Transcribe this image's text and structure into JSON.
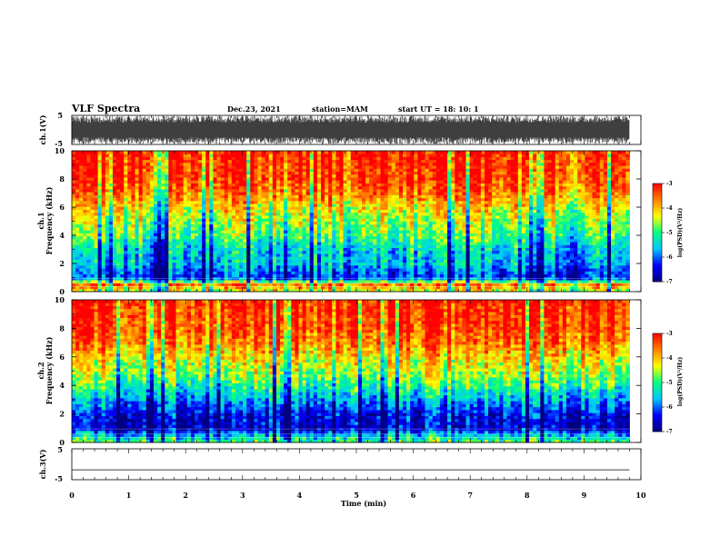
{
  "header": {
    "title": "VLF Spectra",
    "date": "Dec.23, 2021",
    "station": "station=MAM",
    "start": "start  UT  =   18: 10: 1"
  },
  "colors": {
    "axis": "#000000",
    "spectrogram_scale": [
      "#000080",
      "#0000ff",
      "#00c8ff",
      "#00ff80",
      "#ffff00",
      "#ff8000",
      "#ff0000"
    ]
  },
  "chart_data": [
    {
      "type": "line",
      "name": "ch1-waveform",
      "ylabel": "ch.1(V)",
      "x_range": [
        0,
        10
      ],
      "ylim": [
        -5,
        5
      ],
      "y_ticks": [
        "5",
        "-5"
      ],
      "grid": false,
      "description_fill": "dense oscillating waveform filling roughly -4 to 4 V from 0 to 9.8 min"
    },
    {
      "type": "heatmap",
      "name": "ch1-spectrogram",
      "ylabel_line1": "ch.1",
      "ylabel_line2": "Frequency (kHz)",
      "ylim": [
        0,
        10
      ],
      "y_ticks": [
        "0",
        "2",
        "4",
        "6",
        "8",
        "10"
      ],
      "x_range": [
        0,
        10
      ],
      "data_x_end": 9.8,
      "freq_profile_log_psd": [
        {
          "f": 0.0,
          "v": -4.6
        },
        {
          "f": 0.5,
          "v": -3.6
        },
        {
          "f": 1.0,
          "v": -6.3
        },
        {
          "f": 1.5,
          "v": -6.0
        },
        {
          "f": 2.0,
          "v": -5.6
        },
        {
          "f": 3.0,
          "v": -5.5
        },
        {
          "f": 4.0,
          "v": -4.9
        },
        {
          "f": 5.0,
          "v": -4.6
        },
        {
          "f": 6.0,
          "v": -4.2
        },
        {
          "f": 7.0,
          "v": -3.6
        },
        {
          "f": 8.0,
          "v": -3.3
        },
        {
          "f": 10.0,
          "v": -3.1
        }
      ],
      "colorbar": {
        "label": "log(PSD)(V²/Hz)",
        "ticks": [
          "-3",
          "-4",
          "-5",
          "-6",
          "-7"
        ],
        "range": [
          -7,
          -3
        ]
      }
    },
    {
      "type": "heatmap",
      "name": "ch2-spectrogram",
      "ylabel_line1": "ch.2",
      "ylabel_line2": "Frequency (kHz)",
      "ylim": [
        0,
        10
      ],
      "y_ticks": [
        "0",
        "2",
        "4",
        "6",
        "8",
        "10"
      ],
      "x_range": [
        0,
        10
      ],
      "data_x_end": 9.8,
      "freq_profile_log_psd": [
        {
          "f": 0.0,
          "v": -4.8
        },
        {
          "f": 0.5,
          "v": -5.5
        },
        {
          "f": 1.0,
          "v": -6.6
        },
        {
          "f": 2.0,
          "v": -6.4
        },
        {
          "f": 3.0,
          "v": -5.7
        },
        {
          "f": 4.0,
          "v": -5.0
        },
        {
          "f": 5.0,
          "v": -4.5
        },
        {
          "f": 6.0,
          "v": -4.1
        },
        {
          "f": 7.0,
          "v": -3.6
        },
        {
          "f": 8.0,
          "v": -3.3
        },
        {
          "f": 10.0,
          "v": -3.1
        }
      ],
      "colorbar": {
        "label": "log(PSD)(V²/Hz)",
        "ticks": [
          "-3",
          "-4",
          "-5",
          "-6",
          "-7"
        ],
        "range": [
          -7,
          -3
        ]
      }
    },
    {
      "type": "line",
      "name": "ch3-waveform",
      "ylabel": "ch.3(V)",
      "ylim": [
        -5,
        5
      ],
      "y_ticks": [
        "5",
        "-5"
      ],
      "x_range": [
        0,
        10
      ],
      "x": [
        0,
        9.8
      ],
      "y": [
        -1.8,
        -1.8
      ]
    }
  ],
  "x_axis": {
    "label": "Time  (min)",
    "ticks": [
      "0",
      "1",
      "2",
      "3",
      "4",
      "5",
      "6",
      "7",
      "8",
      "9",
      "10"
    ],
    "range": [
      0,
      10
    ]
  }
}
